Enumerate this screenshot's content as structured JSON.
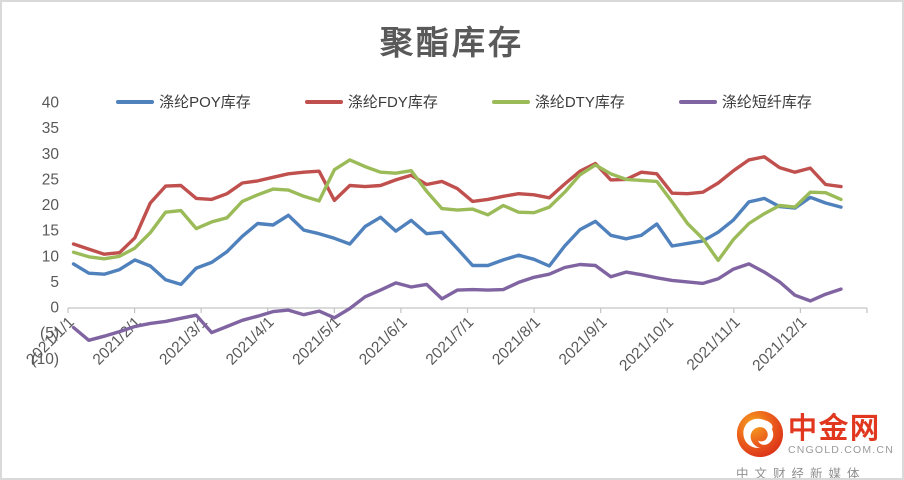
{
  "title": "聚酯库存",
  "chart_data": {
    "type": "line",
    "x": [
      "2021/1/1",
      "2021/1/8",
      "2021/1/15",
      "2021/1/22",
      "2021/1/29",
      "2021/2/5",
      "2021/2/12",
      "2021/2/19",
      "2021/2/26",
      "2021/3/5",
      "2021/3/12",
      "2021/3/19",
      "2021/3/26",
      "2021/4/2",
      "2021/4/9",
      "2021/4/16",
      "2021/4/23",
      "2021/4/30",
      "2021/5/7",
      "2021/5/14",
      "2021/5/21",
      "2021/5/28",
      "2021/6/4",
      "2021/6/11",
      "2021/6/18",
      "2021/6/25",
      "2021/7/2",
      "2021/7/9",
      "2021/7/16",
      "2021/7/23",
      "2021/7/30",
      "2021/8/6",
      "2021/8/13",
      "2021/8/20",
      "2021/8/27",
      "2021/9/3",
      "2021/9/10",
      "2021/9/17",
      "2021/9/24",
      "2021/10/1",
      "2021/10/8",
      "2021/10/15",
      "2021/10/22",
      "2021/10/29",
      "2021/11/5",
      "2021/11/12",
      "2021/11/19",
      "2021/11/26",
      "2021/12/3",
      "2021/12/10",
      "2021/12/17"
    ],
    "series": [
      {
        "name": "涤纶POY库存",
        "color": "#4f81bd",
        "values": [
          8.4,
          6.6,
          6.4,
          7.3,
          9.2,
          8.0,
          5.3,
          4.4,
          7.6,
          8.7,
          10.8,
          13.8,
          16.3,
          16.0,
          17.9,
          15.0,
          14.3,
          13.4,
          12.3,
          15.7,
          17.5,
          14.8,
          16.9,
          14.3,
          14.6,
          11.4,
          8.1,
          8.1,
          9.2,
          10.1,
          9.3,
          8.0,
          11.9,
          15.1,
          16.7,
          14.0,
          13.3,
          14.0,
          16.2,
          11.9,
          12.4,
          12.9,
          14.6,
          17.0,
          20.5,
          21.2,
          19.6,
          19.3,
          21.4,
          20.3,
          19.5
        ]
      },
      {
        "name": "涤纶FDY库存",
        "color": "#c0504d",
        "values": [
          12.3,
          11.3,
          10.3,
          10.6,
          13.5,
          20.3,
          23.6,
          23.7,
          21.2,
          21.0,
          22.1,
          24.2,
          24.6,
          25.3,
          26.0,
          26.3,
          26.5,
          20.8,
          23.7,
          23.5,
          23.7,
          24.8,
          25.7,
          23.9,
          24.5,
          23.1,
          20.6,
          21.0,
          21.6,
          22.1,
          21.9,
          21.3,
          24.0,
          26.5,
          28.0,
          24.8,
          24.9,
          26.3,
          26.0,
          22.2,
          22.1,
          22.4,
          24.2,
          26.6,
          28.7,
          29.3,
          27.2,
          26.3,
          27.1,
          23.9,
          23.5
        ]
      },
      {
        "name": "涤纶DTY库存",
        "color": "#9bbb59",
        "values": [
          10.7,
          9.8,
          9.4,
          9.9,
          11.5,
          14.5,
          18.5,
          18.8,
          15.3,
          16.6,
          17.4,
          20.6,
          21.9,
          23.0,
          22.8,
          21.6,
          20.7,
          26.8,
          28.7,
          27.4,
          26.3,
          26.1,
          26.6,
          22.6,
          19.2,
          18.9,
          19.1,
          18.0,
          19.8,
          18.5,
          18.4,
          19.5,
          22.4,
          25.8,
          27.7,
          26.0,
          24.9,
          24.7,
          24.5,
          20.5,
          16.3,
          13.3,
          9.1,
          13.2,
          16.3,
          18.2,
          19.8,
          19.5,
          22.4,
          22.3,
          21.0
        ]
      },
      {
        "name": "涤纶短纤库存",
        "color": "#8064a2",
        "values": [
          -4.0,
          -6.5,
          -5.7,
          -4.8,
          -3.8,
          -3.2,
          -2.8,
          -2.2,
          -1.6,
          -5.0,
          -3.8,
          -2.6,
          -1.8,
          -0.9,
          -0.6,
          -1.5,
          -0.8,
          -2.1,
          -0.3,
          2.0,
          3.3,
          4.7,
          3.9,
          4.4,
          1.6,
          3.3,
          3.4,
          3.3,
          3.4,
          4.8,
          5.8,
          6.4,
          7.7,
          8.3,
          8.1,
          5.9,
          6.8,
          6.3,
          5.7,
          5.2,
          4.9,
          4.6,
          5.5,
          7.4,
          8.4,
          6.8,
          4.9,
          2.3,
          1.2,
          2.5,
          3.5
        ]
      }
    ],
    "ylim": [
      -10,
      40
    ],
    "ytick_step": 5,
    "ytick_labels": [
      "40",
      "35",
      "30",
      "25",
      "20",
      "15",
      "10",
      "5",
      "0",
      "(5)",
      "(10)"
    ],
    "xtick_labels": [
      "2021/1/1",
      "2021/2/1",
      "2021/3/1",
      "2021/4/1",
      "2021/5/1",
      "2021/6/1",
      "2021/7/1",
      "2021/8/1",
      "2021/9/1",
      "2021/10/1",
      "2021/11/1",
      "2021/12/1"
    ],
    "grid": false,
    "legend_position": "top",
    "axis_color": "#c3c3c3",
    "label_color": "#595959"
  },
  "watermark": {
    "brand": "中金网",
    "domain": "CNGOLD.COM.CN",
    "tagline": "中文财经新媒体"
  }
}
